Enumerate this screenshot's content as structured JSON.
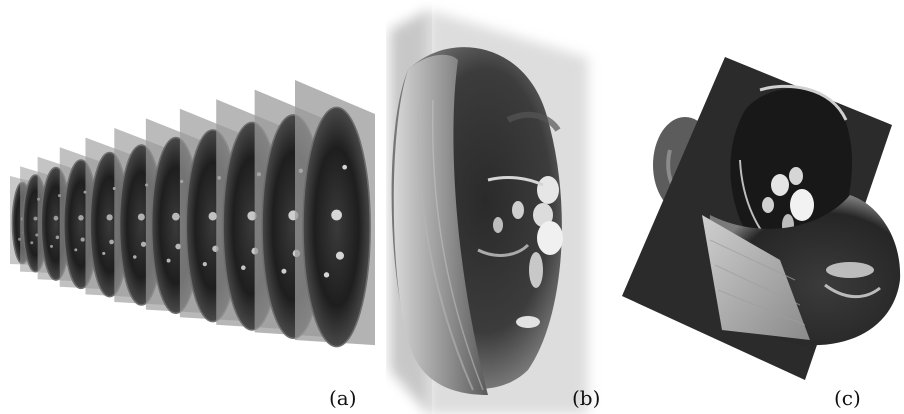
{
  "figure": {
    "panels": [
      {
        "label": "(a)",
        "depicts": "stack-of-mri-slices"
      },
      {
        "label": "(b)",
        "depicts": "volume-rendering"
      },
      {
        "label": "(c)",
        "depicts": "oblique-slice-through-volume"
      }
    ],
    "slice_count": 11,
    "colors": {
      "slice_plane": "#9a9a9a",
      "tissue_dark": "#1a1a1a",
      "tissue_mid": "#6e6e6e",
      "tissue_bright": "#e8e8e8",
      "background": "#ffffff"
    }
  }
}
